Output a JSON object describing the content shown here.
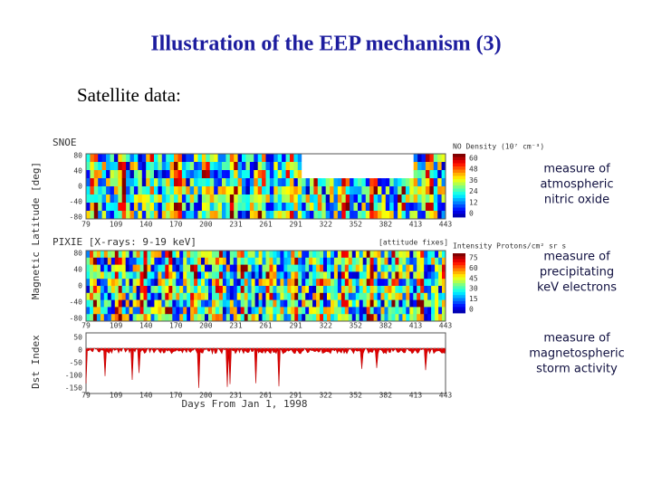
{
  "slide": {
    "title": "Illustration of the EEP mechanism (3)",
    "subtitle": "Satellite data:",
    "annotations": [
      [
        "measure of",
        "atmospheric",
        "nitric oxide"
      ],
      [
        "measure of",
        "precipitating",
        "keV electrons"
      ],
      [
        "measure of",
        "magnetospheric",
        "storm activity"
      ]
    ]
  },
  "figure": {
    "panel_titles": [
      "SNOE",
      "PIXIE [X-rays: 9-19 keV]",
      "[attitude fixes]"
    ],
    "colorbar_titles": [
      "NO Density (10⁷ cm⁻³)",
      "Intensity Protons/cm² sr s"
    ],
    "colorbar1_ticks": [
      "60",
      "48",
      "36",
      "24",
      "12",
      "0"
    ],
    "colorbar2_ticks": [
      "75",
      "60",
      "45",
      "30",
      "15",
      "0"
    ],
    "y_label_top": "Magnetic Latitude [deg]",
    "y_label_bottom": "Dst Index",
    "lat_ticks": [
      "80",
      "40",
      "0",
      "-40",
      "-80"
    ],
    "dst_ticks": [
      "50",
      "0",
      "-50",
      "-100",
      "-150"
    ],
    "x_ticks": [
      "79",
      "109",
      "140",
      "170",
      "200",
      "231",
      "261",
      "291",
      "322",
      "352",
      "382",
      "413",
      "443"
    ],
    "x_label": "Days From Jan 1, 1998"
  }
}
